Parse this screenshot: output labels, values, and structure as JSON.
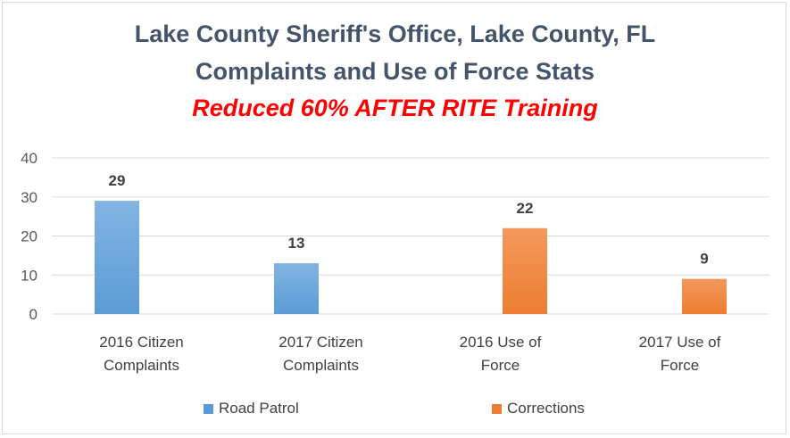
{
  "title_line1": "Lake County Sheriff's Office, Lake County, FL",
  "title_line2": "Complaints and Use of Force Stats",
  "subtitle": "Reduced 60% AFTER RITE Training",
  "colors": {
    "road_patrol": "#5b9bd5",
    "corrections": "#ed7d31",
    "title": "#44546a",
    "subtitle": "#ff0000"
  },
  "chart_data": {
    "type": "bar",
    "title": "Lake County Sheriff's Office, Lake County, FL Complaints and Use of Force Stats",
    "subtitle": "Reduced 60% AFTER RITE Training",
    "categories": [
      "2016 Citizen Complaints",
      "2017 Citizen Complaints",
      "2016 Use of Force",
      "2017 Use of Force"
    ],
    "category_lines": [
      [
        "2016 Citizen",
        "Complaints"
      ],
      [
        "2017 Citizen",
        "Complaints"
      ],
      [
        "2016 Use of",
        "Force"
      ],
      [
        "2017 Use of",
        "Force"
      ]
    ],
    "series": [
      {
        "name": "Road Patrol",
        "color": "#5b9bd5",
        "values": [
          29,
          13,
          null,
          null
        ]
      },
      {
        "name": "Corrections",
        "color": "#ed7d31",
        "values": [
          null,
          null,
          22,
          9
        ]
      }
    ],
    "ylim": [
      0,
      40
    ],
    "yticks": [
      0,
      10,
      20,
      30,
      40
    ],
    "grid": true,
    "legend": "bottom",
    "data_labels": true
  }
}
